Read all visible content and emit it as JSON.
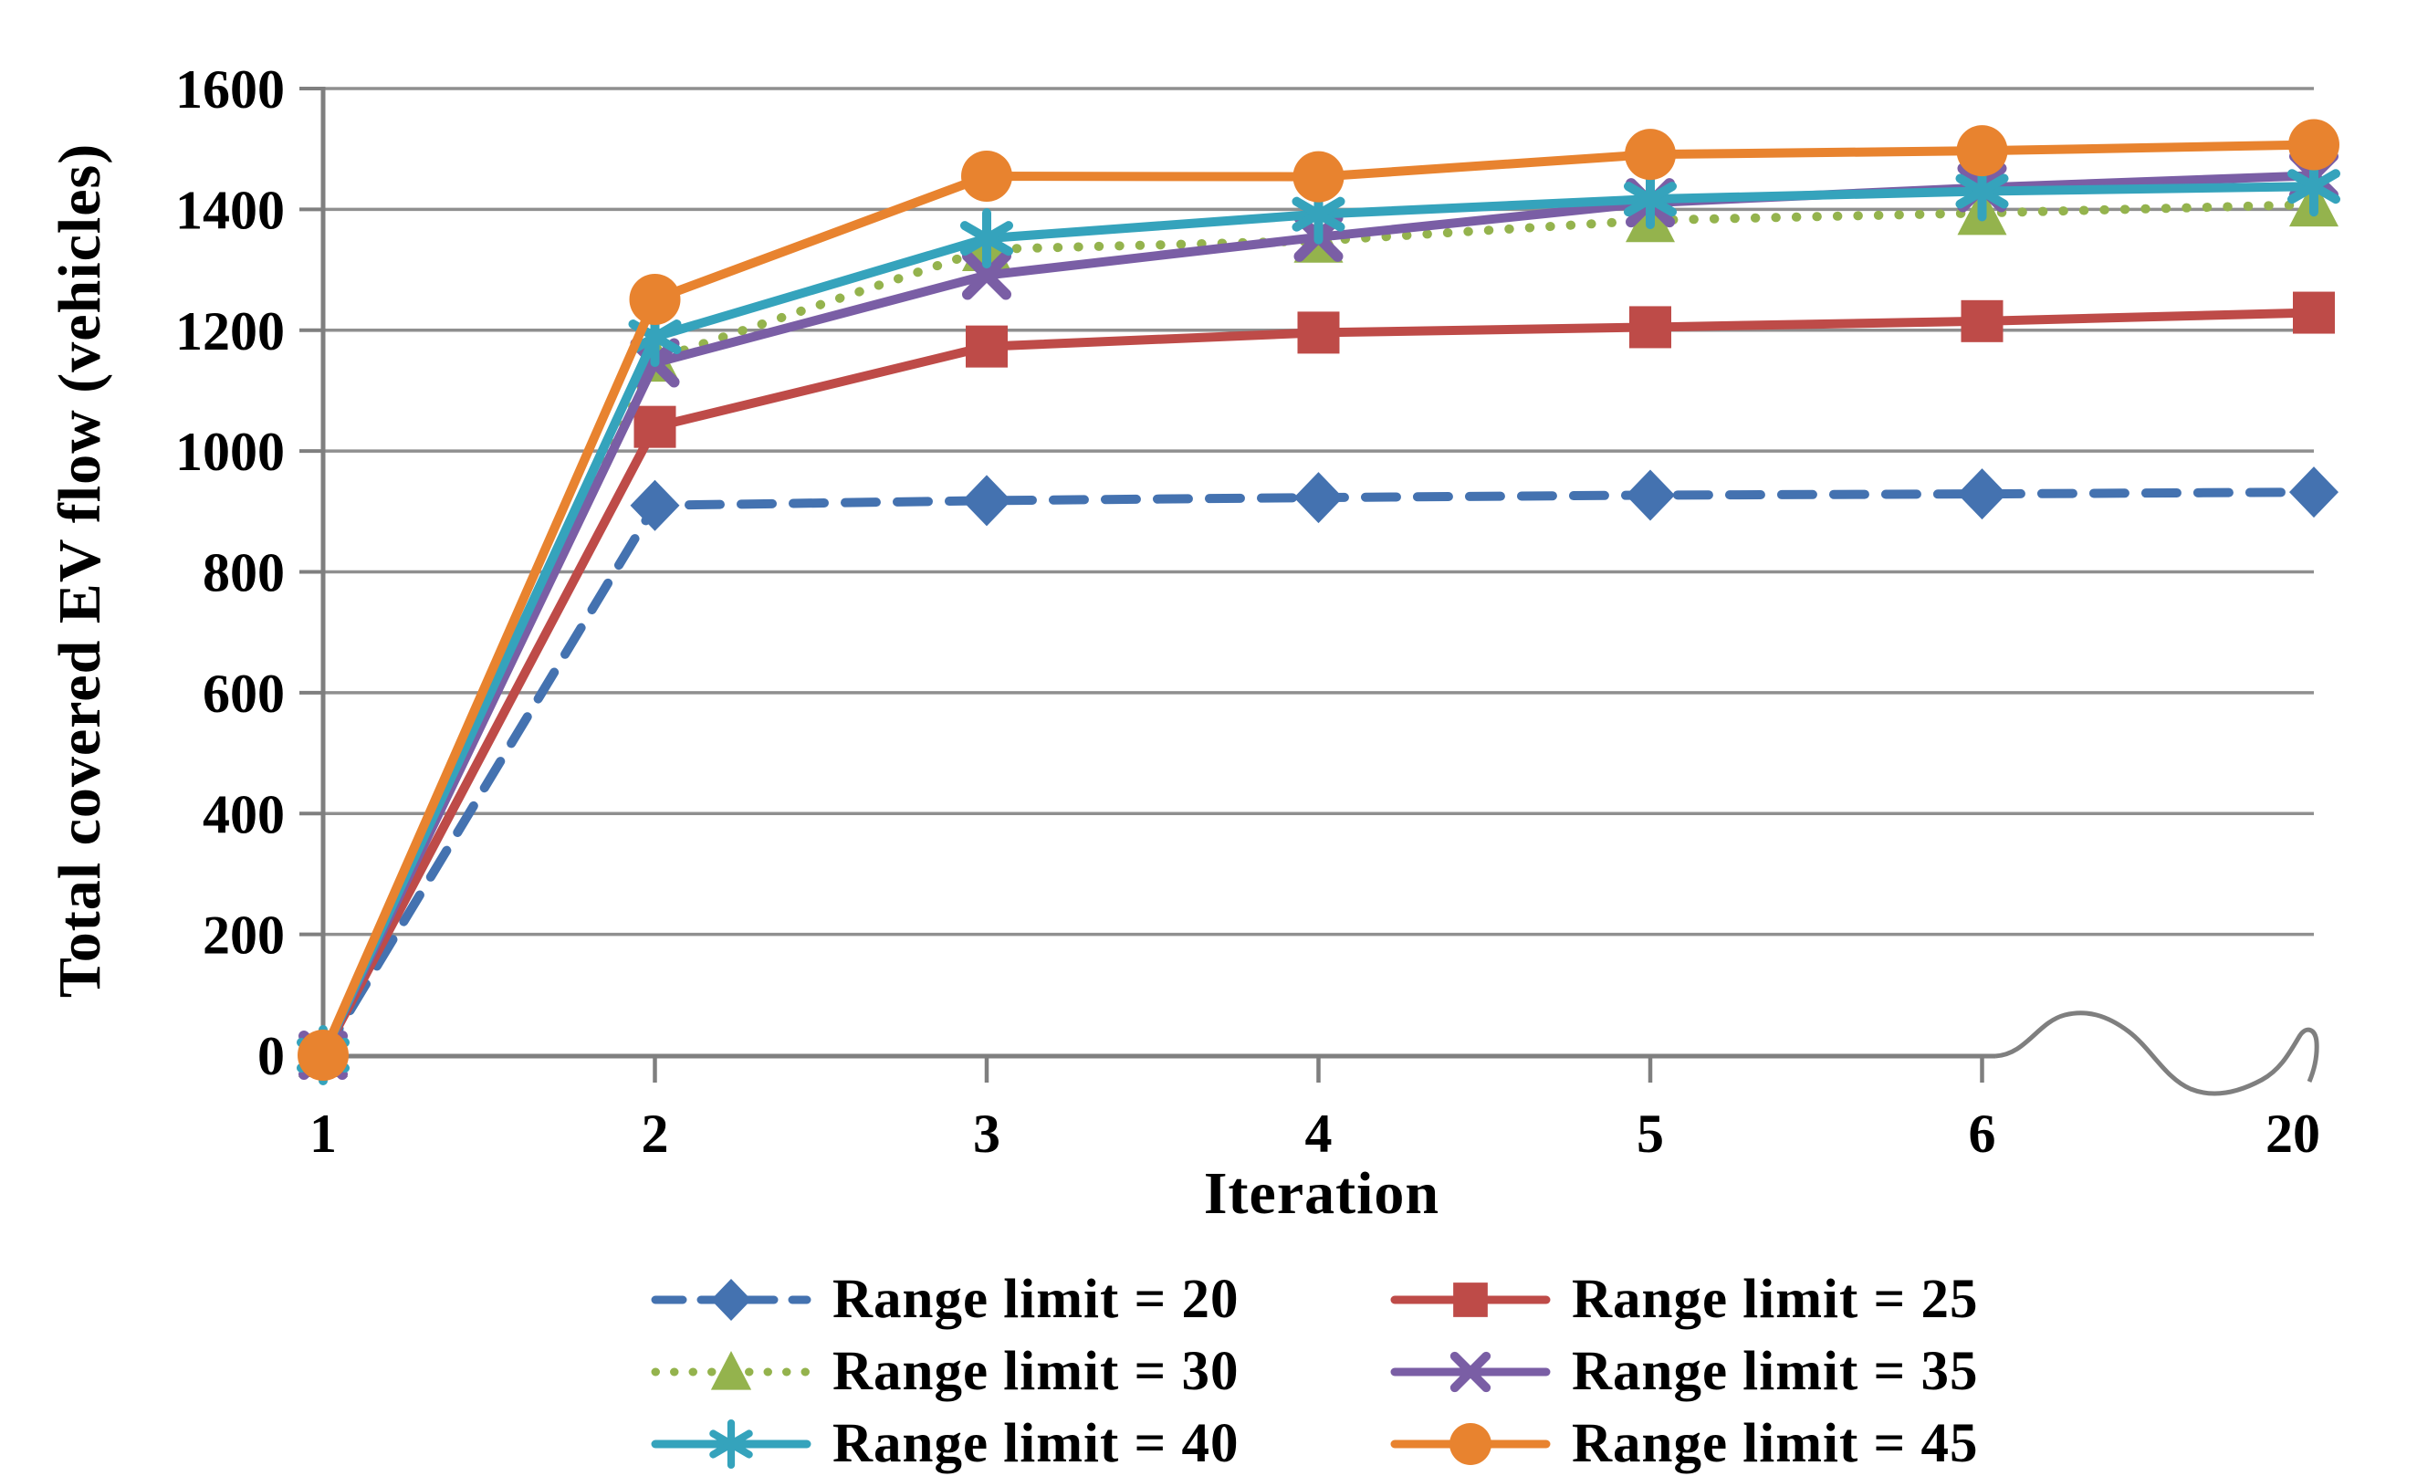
{
  "chart_data": {
    "type": "line",
    "title": "",
    "xlabel": "Iteration",
    "ylabel": "Total covered EV flow (vehicles)",
    "categories": [
      "1",
      "2",
      "3",
      "4",
      "5",
      "6",
      "20"
    ],
    "x_axis_break_between": [
      "6",
      "20"
    ],
    "ylim": [
      0,
      1600
    ],
    "y_ticks": [
      0,
      200,
      400,
      600,
      800,
      1000,
      1200,
      1400,
      1600
    ],
    "y_tick_labels": [
      "0",
      "200",
      "400",
      "600",
      "800",
      "1000",
      "1200",
      "1400",
      "1600"
    ],
    "grid": "horizontal gridlines on",
    "legend_position": "bottom, two columns",
    "series": [
      {
        "name": "Range limit = 20",
        "color": "#4472B0",
        "line_style": "dashed",
        "marker": "diamond",
        "values": [
          0,
          910,
          918,
          923,
          927,
          929,
          932
        ]
      },
      {
        "name": "Range limit = 25",
        "color": "#BE4B48",
        "line_style": "solid",
        "marker": "square",
        "values": [
          0,
          1040,
          1173,
          1196,
          1205,
          1215,
          1229
        ]
      },
      {
        "name": "Range limit = 30",
        "color": "#94B34D",
        "line_style": "dotted",
        "marker": "triangle",
        "values": [
          0,
          1151,
          1334,
          1348,
          1382,
          1394,
          1408
        ]
      },
      {
        "name": "Range limit = 35",
        "color": "#7A5EA5",
        "line_style": "solid",
        "marker": "x",
        "values": [
          0,
          1146,
          1291,
          1354,
          1411,
          1436,
          1456
        ]
      },
      {
        "name": "Range limit = 40",
        "color": "#35A3BC",
        "line_style": "solid",
        "marker": "star",
        "values": [
          0,
          1189,
          1352,
          1392,
          1417,
          1430,
          1438
        ]
      },
      {
        "name": "Range limit = 45",
        "color": "#E8832F",
        "line_style": "solid",
        "marker": "circle",
        "values": [
          0,
          1251,
          1455,
          1454,
          1491,
          1497,
          1507
        ]
      }
    ]
  },
  "colors": {
    "background": "#ffffff",
    "axis": "#7f7f7f",
    "grid": "#8f8f8f",
    "text": "#000000"
  }
}
